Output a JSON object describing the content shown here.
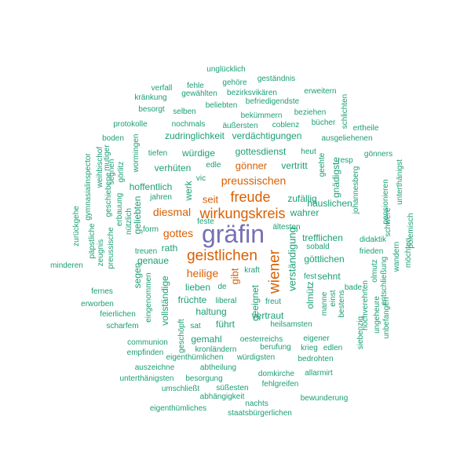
{
  "colors": {
    "top": "#7570b3",
    "mid": "#d95f02",
    "low": "#1b9e77"
  },
  "words": [
    {
      "t": "gräfin",
      "c": "top"
    },
    {
      "t": "geistlichen",
      "c": "mid"
    },
    {
      "t": "wirkungskreis",
      "c": "mid"
    },
    {
      "t": "freude",
      "c": "mid"
    },
    {
      "t": "wiener",
      "c": "mid"
    },
    {
      "t": "preussischen",
      "c": "mid"
    },
    {
      "t": "diesmal",
      "c": "mid"
    },
    {
      "t": "gottes",
      "c": "mid"
    },
    {
      "t": "heilige",
      "c": "mid"
    },
    {
      "t": "gönner",
      "c": "mid"
    },
    {
      "t": "gibt",
      "c": "mid"
    },
    {
      "t": "seit",
      "c": "mid"
    },
    {
      "t": "unglücklich",
      "c": "low"
    },
    {
      "t": "verfall",
      "c": "low"
    },
    {
      "t": "fehle",
      "c": "low"
    },
    {
      "t": "gehöre",
      "c": "low"
    },
    {
      "t": "geständnis",
      "c": "low"
    },
    {
      "t": "kränkung",
      "c": "low"
    },
    {
      "t": "gewählten",
      "c": "low"
    },
    {
      "t": "bezirksvikären",
      "c": "low"
    },
    {
      "t": "erweitern",
      "c": "low"
    },
    {
      "t": "beliebten",
      "c": "low"
    },
    {
      "t": "befriedigendste",
      "c": "low"
    },
    {
      "t": "besorgt",
      "c": "low"
    },
    {
      "t": "selben",
      "c": "low"
    },
    {
      "t": "bekümmern",
      "c": "low"
    },
    {
      "t": "beziehen",
      "c": "low"
    },
    {
      "t": "schlichten",
      "c": "low"
    },
    {
      "t": "protokolle",
      "c": "low"
    },
    {
      "t": "nochmals",
      "c": "low"
    },
    {
      "t": "äußersten",
      "c": "low"
    },
    {
      "t": "coblenz",
      "c": "low"
    },
    {
      "t": "bücher",
      "c": "low"
    },
    {
      "t": "ertheile",
      "c": "low"
    },
    {
      "t": "boden",
      "c": "low"
    },
    {
      "t": "zudringlichkeit",
      "c": "low"
    },
    {
      "t": "verdächtigungen",
      "c": "low"
    },
    {
      "t": "häuslichen",
      "c": "low"
    },
    {
      "t": "ausgeliehenen",
      "c": "low"
    },
    {
      "t": "gymnasialinspector",
      "c": "low"
    },
    {
      "t": "weihbischof",
      "c": "low"
    },
    {
      "t": "mutiger",
      "c": "low"
    },
    {
      "t": "wormingen",
      "c": "low"
    },
    {
      "t": "tiefen",
      "c": "low"
    },
    {
      "t": "würdige",
      "c": "low"
    },
    {
      "t": "gottesdienst",
      "c": "low"
    },
    {
      "t": "heut",
      "c": "low"
    },
    {
      "t": "gönners",
      "c": "low"
    },
    {
      "t": "segnen",
      "c": "low"
    },
    {
      "t": "görlitz",
      "c": "low"
    },
    {
      "t": "verhüten",
      "c": "low"
    },
    {
      "t": "edle",
      "c": "low"
    },
    {
      "t": "vertritt",
      "c": "low"
    },
    {
      "t": "geehte",
      "c": "low"
    },
    {
      "t": "gnädigste",
      "c": "low"
    },
    {
      "t": "resp",
      "c": "low"
    },
    {
      "t": "johannesberg",
      "c": "low"
    },
    {
      "t": "zurückgehe",
      "c": "low"
    },
    {
      "t": "geschiebene",
      "c": "low"
    },
    {
      "t": "erbauung",
      "c": "low"
    },
    {
      "t": "hoffentlich",
      "c": "low"
    },
    {
      "t": "vic",
      "c": "low"
    },
    {
      "t": "werk",
      "c": "low"
    },
    {
      "t": "zufällig",
      "c": "low"
    },
    {
      "t": "unterthänigst",
      "c": "low"
    },
    {
      "t": "pensionieren",
      "c": "low"
    },
    {
      "t": "päpstliche",
      "c": "low"
    },
    {
      "t": "zeugnis",
      "c": "low"
    },
    {
      "t": "jahren",
      "c": "low"
    },
    {
      "t": "geliebten",
      "c": "low"
    },
    {
      "t": "feste",
      "c": "low"
    },
    {
      "t": "wahrer",
      "c": "low"
    },
    {
      "t": "preussische",
      "c": "low"
    },
    {
      "t": "nützlich",
      "c": "low"
    },
    {
      "t": "form",
      "c": "low"
    },
    {
      "t": "ältesten",
      "c": "low"
    },
    {
      "t": "trefflichen",
      "c": "low"
    },
    {
      "t": "didaktik",
      "c": "low"
    },
    {
      "t": "rath",
      "c": "low"
    },
    {
      "t": "sobald",
      "c": "low"
    },
    {
      "t": "schwere",
      "c": "low"
    },
    {
      "t": "polemisch",
      "c": "low"
    },
    {
      "t": "minderen",
      "c": "low"
    },
    {
      "t": "treuen",
      "c": "low"
    },
    {
      "t": "genaue",
      "c": "low"
    },
    {
      "t": "kraft",
      "c": "low"
    },
    {
      "t": "göttlichen",
      "c": "low"
    },
    {
      "t": "frieden",
      "c": "low"
    },
    {
      "t": "möchten",
      "c": "low"
    },
    {
      "t": "segen",
      "c": "low"
    },
    {
      "t": "verständigung",
      "c": "low"
    },
    {
      "t": "sehnt",
      "c": "low"
    },
    {
      "t": "wandern",
      "c": "low"
    },
    {
      "t": "fernes",
      "c": "low"
    },
    {
      "t": "vollständige",
      "c": "low"
    },
    {
      "t": "lieben",
      "c": "low"
    },
    {
      "t": "de",
      "c": "low"
    },
    {
      "t": "fest",
      "c": "low"
    },
    {
      "t": "bade",
      "c": "low"
    },
    {
      "t": "olmütz",
      "c": "low"
    },
    {
      "t": "entschließung",
      "c": "low"
    },
    {
      "t": "erworben",
      "c": "low"
    },
    {
      "t": "eingenommen",
      "c": "low"
    },
    {
      "t": "früchte",
      "c": "low"
    },
    {
      "t": "liberal",
      "c": "low"
    },
    {
      "t": "geeignet",
      "c": "low"
    },
    {
      "t": "freut",
      "c": "low"
    },
    {
      "t": "manne",
      "c": "low"
    },
    {
      "t": "einst",
      "c": "low"
    },
    {
      "t": "olmutz",
      "c": "low"
    },
    {
      "t": "feierlichen",
      "c": "low"
    },
    {
      "t": "haltung",
      "c": "low"
    },
    {
      "t": "vertraut",
      "c": "low"
    },
    {
      "t": "bestens",
      "c": "low"
    },
    {
      "t": "hochverehrten",
      "c": "low"
    },
    {
      "t": "scharfem",
      "c": "low"
    },
    {
      "t": "sat",
      "c": "low"
    },
    {
      "t": "führt",
      "c": "low"
    },
    {
      "t": "heilsamsten",
      "c": "low"
    },
    {
      "t": "ungeheure",
      "c": "low"
    },
    {
      "t": "gemahl",
      "c": "low"
    },
    {
      "t": "geschöpft",
      "c": "low"
    },
    {
      "t": "eigener",
      "c": "low"
    },
    {
      "t": "communion",
      "c": "low"
    },
    {
      "t": "oesterreichs",
      "c": "low"
    },
    {
      "t": "unbefangen",
      "c": "low"
    },
    {
      "t": "empfinden",
      "c": "low"
    },
    {
      "t": "kronländern",
      "c": "low"
    },
    {
      "t": "berufung",
      "c": "low"
    },
    {
      "t": "krieg",
      "c": "low"
    },
    {
      "t": "edlen",
      "c": "low"
    },
    {
      "t": "siebenzig",
      "c": "low"
    },
    {
      "t": "eigenthümlichen",
      "c": "low"
    },
    {
      "t": "würdigsten",
      "c": "low"
    },
    {
      "t": "bedrohten",
      "c": "low"
    },
    {
      "t": "auszeichne",
      "c": "low"
    },
    {
      "t": "abtheilung",
      "c": "low"
    },
    {
      "t": "domkirche",
      "c": "low"
    },
    {
      "t": "allarmirt",
      "c": "low"
    },
    {
      "t": "unterthänigsten",
      "c": "low"
    },
    {
      "t": "besorgung",
      "c": "low"
    },
    {
      "t": "fehlgreifen",
      "c": "low"
    },
    {
      "t": "umschließt",
      "c": "low"
    },
    {
      "t": "süßesten",
      "c": "low"
    },
    {
      "t": "abhängigkeit",
      "c": "low"
    },
    {
      "t": "bewunderung",
      "c": "low"
    },
    {
      "t": "eigenthümliches",
      "c": "low"
    },
    {
      "t": "nachts",
      "c": "low"
    },
    {
      "t": "staatsbürgerlichen",
      "c": "low"
    }
  ]
}
